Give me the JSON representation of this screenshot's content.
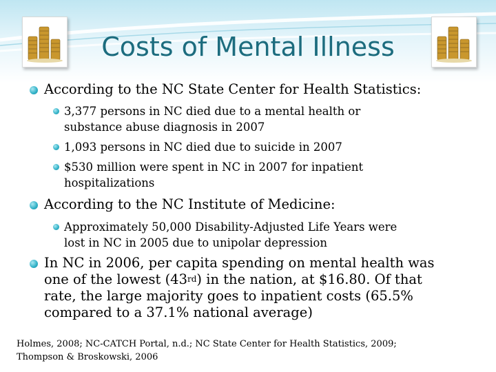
{
  "slide": {
    "title": "Costs of Mental Illness",
    "bullets": [
      {
        "text": "According to the NC State Center for Health Statistics:",
        "sub": [
          {
            "line1": "3,377  persons in NC died due to a mental health or",
            "line2": "substance abuse diagnosis in 2007"
          },
          {
            "line1": "1,093 persons in NC died due to suicide in 2007"
          },
          {
            "line1": "$530 million were spent in NC in 2007 for inpatient",
            "line2": "hospitalizations"
          }
        ]
      },
      {
        "text": "According to the NC Institute of Medicine:",
        "sub": [
          {
            "line1": "Approximately 50,000 Disability-Adjusted Life Years were",
            "line2": "lost in NC in 2005 due to unipolar depression"
          }
        ]
      },
      {
        "line1": "In NC in 2006, per capita spending on mental health was",
        "line2_pre": "one of the lowest (43",
        "line2_sup": "rd",
        "line2_post": ") in the nation, at $16.80. Of that",
        "line3": "rate, the large majority goes to inpatient costs (65.5%",
        "line4": "compared to a 37.1% national average)"
      }
    ],
    "citation": {
      "line1": "Holmes, 2008; NC-CATCH Portal, n.d.; NC State Center for Health Statistics, 2009;",
      "line2": "Thompson & Broskowski, 2006"
    },
    "colors": {
      "title": "#1c6c7e",
      "bullet": "#2fb0c6",
      "band": "#bfe6f2"
    },
    "icons": {
      "left": "coin-stack-icon",
      "right": "coin-stack-icon"
    }
  }
}
